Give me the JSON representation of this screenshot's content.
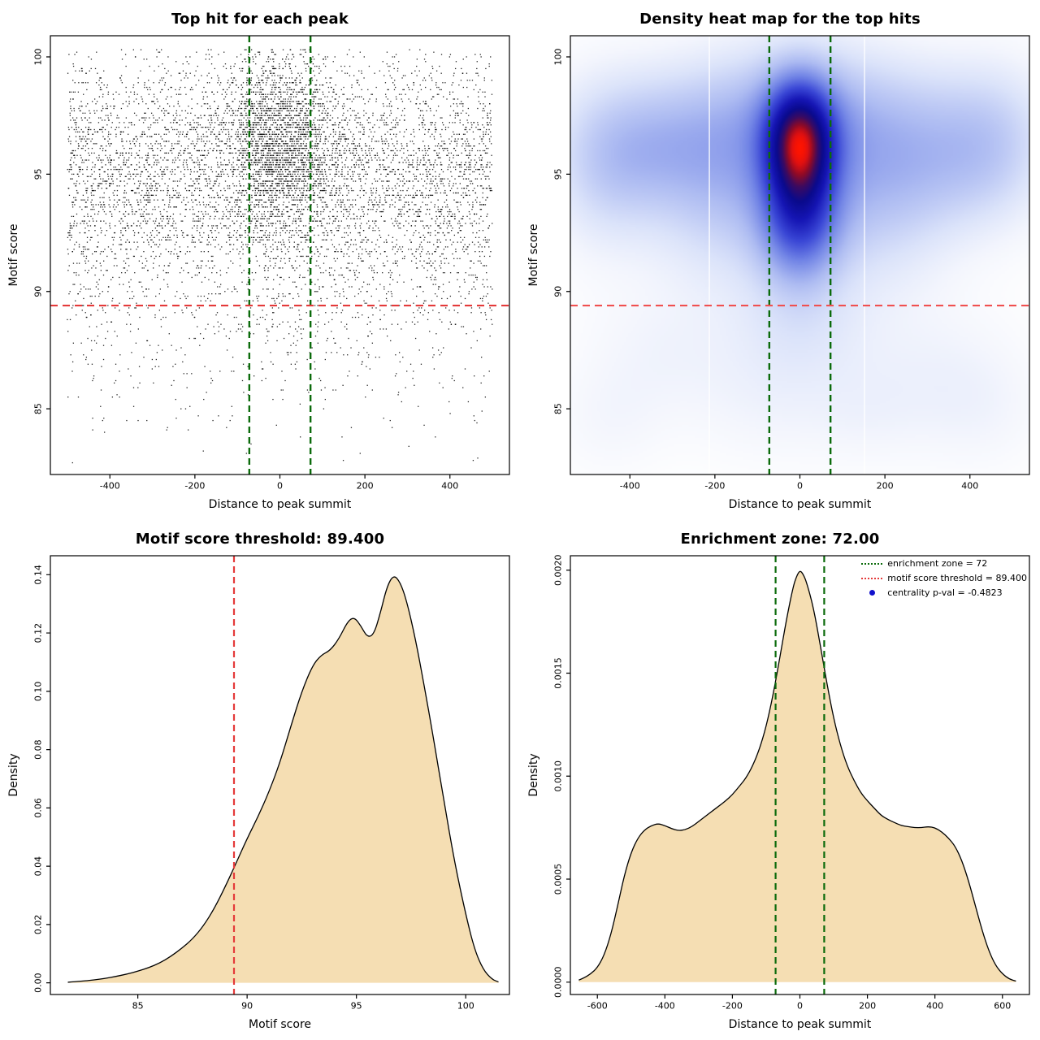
{
  "figure": {
    "background": "#ffffff",
    "accent_green": "#0b6b0b",
    "accent_red": "#e43a3a",
    "fill_wheat": "#f5deb3"
  },
  "chart_data": [
    {
      "id": "top-hit-scatter",
      "type": "scatter",
      "title": "Top hit for each peak",
      "xlabel": "Distance to peak summit",
      "ylabel": "Motif score",
      "xlim": [
        -540,
        540
      ],
      "ylim": [
        82.2,
        100.9
      ],
      "xticks": [
        -400,
        -200,
        0,
        200,
        400
      ],
      "xtick_labels": [
        "-400",
        "-200",
        "0",
        "200",
        "400"
      ],
      "yticks": [
        85,
        90,
        95,
        100
      ],
      "ytick_labels": [
        "85",
        "90",
        "95",
        "100"
      ],
      "grid": false,
      "point_color": "#000000",
      "point_size": 1.3,
      "n_points": 8200,
      "seed": 42,
      "y_quantize": 0.1,
      "mixture": [
        {
          "weight": 0.6,
          "x": {
            "type": "uniform",
            "min": -500,
            "max": 500
          },
          "y": {
            "type": "normal",
            "mean": 95.3,
            "sd": 2.6,
            "min": 83.0,
            "max": 100.35
          }
        },
        {
          "weight": 0.14,
          "x": {
            "type": "uniform",
            "min": -500,
            "max": 500
          },
          "y": {
            "type": "normal",
            "mean": 90.5,
            "sd": 3.2,
            "min": 82.6,
            "max": 100.35
          }
        },
        {
          "weight": 0.26,
          "x": {
            "type": "normal",
            "mean": 0,
            "sd": 65,
            "min": -500,
            "max": 500
          },
          "y": {
            "type": "normal",
            "mean": 96.3,
            "sd": 2.0,
            "min": 89.2,
            "max": 100.35
          }
        }
      ],
      "vlines": [
        {
          "x": -72,
          "color": "#0b6b0b",
          "dash": [
            8,
            5
          ],
          "width": 2.4
        },
        {
          "x": 72,
          "color": "#0b6b0b",
          "dash": [
            8,
            5
          ],
          "width": 2.4
        }
      ],
      "hlines": [
        {
          "y": 89.4,
          "color": "#e43a3a",
          "dash": [
            9,
            6
          ],
          "width": 2.2
        }
      ]
    },
    {
      "id": "density-heatmap",
      "type": "heatmap",
      "title": "Density heat map for the top hits",
      "xlabel": "Distance to peak summit",
      "ylabel": "Motif score",
      "xlim": [
        -540,
        540
      ],
      "ylim": [
        82.2,
        100.9
      ],
      "xticks": [
        -400,
        -200,
        0,
        200,
        400
      ],
      "xtick_labels": [
        "-400",
        "-200",
        "0",
        "200",
        "400"
      ],
      "yticks": [
        85,
        90,
        95,
        100
      ],
      "ytick_labels": [
        "85",
        "90",
        "95",
        "100"
      ],
      "grid": false,
      "colormap": [
        [
          0.0,
          "#ffffff"
        ],
        [
          0.06,
          "#f4f6fd"
        ],
        [
          0.15,
          "#dbe3fa"
        ],
        [
          0.28,
          "#aebcf2"
        ],
        [
          0.42,
          "#7285e6"
        ],
        [
          0.55,
          "#3a47d6"
        ],
        [
          0.68,
          "#1515b4"
        ],
        [
          0.78,
          "#0a0a8c"
        ],
        [
          0.86,
          "#3c0a60"
        ],
        [
          0.92,
          "#8c0a28"
        ],
        [
          0.97,
          "#e01010"
        ],
        [
          1.0,
          "#ff1400"
        ]
      ],
      "gamma": 0.82,
      "blobs": [
        {
          "cx": 0,
          "cy": 96.6,
          "sx": 55,
          "sy": 1.7,
          "a": 1.0
        },
        {
          "cx": 0,
          "cy": 94.2,
          "sx": 60,
          "sy": 2.0,
          "a": 0.55
        },
        {
          "cx": 0,
          "cy": 92.3,
          "sx": 70,
          "sy": 1.6,
          "a": 0.32
        },
        {
          "cx": 0,
          "cy": 96.3,
          "sx": 170,
          "sy": 2.6,
          "a": 0.34
        },
        {
          "cx": -330,
          "cy": 96.0,
          "sx": 130,
          "sy": 1.9,
          "a": 0.26
        },
        {
          "cx": 330,
          "cy": 95.6,
          "sx": 140,
          "sy": 2.1,
          "a": 0.24
        },
        {
          "cx": -460,
          "cy": 95.2,
          "sx": 90,
          "sy": 2.4,
          "a": 0.18
        },
        {
          "cx": 460,
          "cy": 96.4,
          "sx": 90,
          "sy": 2.2,
          "a": 0.16
        },
        {
          "cx": 0,
          "cy": 97.8,
          "sx": 300,
          "sy": 1.8,
          "a": 0.16
        },
        {
          "cx": -180,
          "cy": 93.4,
          "sx": 120,
          "sy": 2.4,
          "a": 0.18
        },
        {
          "cx": 180,
          "cy": 93.2,
          "sx": 120,
          "sy": 2.4,
          "a": 0.16
        },
        {
          "cx": 0,
          "cy": 88.6,
          "sx": 110,
          "sy": 1.8,
          "a": 0.14
        },
        {
          "cx": -320,
          "cy": 87.4,
          "sx": 130,
          "sy": 2.0,
          "a": 0.07
        },
        {
          "cx": 300,
          "cy": 86.6,
          "sx": 140,
          "sy": 2.2,
          "a": 0.07
        },
        {
          "cx": -80,
          "cy": 85.2,
          "sx": 120,
          "sy": 1.8,
          "a": 0.06
        },
        {
          "cx": 150,
          "cy": 84.8,
          "sx": 100,
          "sy": 1.5,
          "a": 0.05
        },
        {
          "cx": -450,
          "cy": 84.5,
          "sx": 90,
          "sy": 1.6,
          "a": 0.05
        },
        {
          "cx": 430,
          "cy": 85.0,
          "sx": 100,
          "sy": 1.8,
          "a": 0.05
        }
      ],
      "white_lines": [
        -213,
        152
      ],
      "vlines": [
        {
          "x": -72,
          "color": "#0b6b0b",
          "dash": [
            8,
            5
          ],
          "width": 2.4
        },
        {
          "x": 72,
          "color": "#0b6b0b",
          "dash": [
            8,
            5
          ],
          "width": 2.4
        }
      ],
      "hlines": [
        {
          "y": 89.4,
          "color": "#f05050",
          "dash": [
            9,
            6
          ],
          "width": 2.2
        }
      ]
    },
    {
      "id": "motif-score-density",
      "type": "density",
      "title": "Motif score threshold: 89.400",
      "xlabel": "Motif score",
      "ylabel": "Density",
      "xlim": [
        81.0,
        102.0
      ],
      "ylim": [
        -0.004,
        0.1465
      ],
      "xticks": [
        85,
        90,
        95,
        100
      ],
      "xtick_labels": [
        "85",
        "90",
        "95",
        "100"
      ],
      "yticks": [
        0.0,
        0.02,
        0.04,
        0.06,
        0.08,
        0.1,
        0.12,
        0.14
      ],
      "ytick_labels": [
        "0.00",
        "0.02",
        "0.04",
        "0.06",
        "0.08",
        "0.10",
        "0.12",
        "0.14"
      ],
      "grid": false,
      "fill": "#f5deb3",
      "stroke": "#000000",
      "curve": [
        [
          81.8,
          0.0002
        ],
        [
          82.5,
          0.0006
        ],
        [
          83.0,
          0.001
        ],
        [
          83.5,
          0.0015
        ],
        [
          84.0,
          0.0022
        ],
        [
          84.5,
          0.003
        ],
        [
          85.0,
          0.004
        ],
        [
          85.5,
          0.0052
        ],
        [
          86.0,
          0.0068
        ],
        [
          86.5,
          0.009
        ],
        [
          87.0,
          0.0118
        ],
        [
          87.5,
          0.015
        ],
        [
          88.0,
          0.0195
        ],
        [
          88.5,
          0.0255
        ],
        [
          89.0,
          0.033
        ],
        [
          89.4,
          0.0395
        ],
        [
          90.0,
          0.0495
        ],
        [
          90.5,
          0.057
        ],
        [
          91.0,
          0.0655
        ],
        [
          91.5,
          0.0755
        ],
        [
          92.0,
          0.088
        ],
        [
          92.5,
          0.1
        ],
        [
          93.0,
          0.109
        ],
        [
          93.4,
          0.1125
        ],
        [
          93.8,
          0.114
        ],
        [
          94.2,
          0.118
        ],
        [
          94.6,
          0.124
        ],
        [
          94.9,
          0.1255
        ],
        [
          95.2,
          0.1225
        ],
        [
          95.5,
          0.1185
        ],
        [
          95.8,
          0.1195
        ],
        [
          96.1,
          0.127
        ],
        [
          96.4,
          0.136
        ],
        [
          96.7,
          0.14
        ],
        [
          97.0,
          0.1375
        ],
        [
          97.3,
          0.131
        ],
        [
          97.7,
          0.118
        ],
        [
          98.1,
          0.102
        ],
        [
          98.5,
          0.085
        ],
        [
          99.0,
          0.0625
        ],
        [
          99.5,
          0.041
        ],
        [
          100.0,
          0.0235
        ],
        [
          100.4,
          0.0115
        ],
        [
          100.8,
          0.0045
        ],
        [
          101.2,
          0.0012
        ],
        [
          101.5,
          0.0003
        ]
      ],
      "vlines": [
        {
          "x": 89.4,
          "color": "#e43a3a",
          "dash": [
            8,
            5
          ],
          "width": 2.2
        }
      ],
      "hlines": []
    },
    {
      "id": "enrichment-zone-density",
      "type": "density",
      "title": "Enrichment zone: 72.00",
      "xlabel": "Distance to peak summit",
      "ylabel": "Density",
      "xlim": [
        -680,
        680
      ],
      "ylim": [
        -6e-05,
        0.00207
      ],
      "xticks": [
        -600,
        -400,
        -200,
        0,
        200,
        400,
        600
      ],
      "xtick_labels": [
        "-600",
        "-400",
        "-200",
        "0",
        "200",
        "400",
        "600"
      ],
      "yticks": [
        0.0,
        0.0005,
        0.001,
        0.0015,
        0.002
      ],
      "ytick_labels": [
        "0.0000",
        "0.0005",
        "0.0010",
        "0.0015",
        "0.0020"
      ],
      "grid": false,
      "fill": "#f5deb3",
      "stroke": "#000000",
      "curve": [
        [
          -655,
          1e-05
        ],
        [
          -640,
          2e-05
        ],
        [
          -620,
          4e-05
        ],
        [
          -600,
          7e-05
        ],
        [
          -580,
          0.00013
        ],
        [
          -560,
          0.00023
        ],
        [
          -540,
          0.00037
        ],
        [
          -520,
          0.00052
        ],
        [
          -500,
          0.00063
        ],
        [
          -480,
          0.0007
        ],
        [
          -460,
          0.00074
        ],
        [
          -440,
          0.00076
        ],
        [
          -420,
          0.00077
        ],
        [
          -400,
          0.00076
        ],
        [
          -380,
          0.000745
        ],
        [
          -360,
          0.000735
        ],
        [
          -340,
          0.00074
        ],
        [
          -320,
          0.000755
        ],
        [
          -300,
          0.00078
        ],
        [
          -280,
          0.000805
        ],
        [
          -260,
          0.00083
        ],
        [
          -240,
          0.000855
        ],
        [
          -220,
          0.00088
        ],
        [
          -200,
          0.00091
        ],
        [
          -180,
          0.00095
        ],
        [
          -160,
          0.00099
        ],
        [
          -140,
          0.00105
        ],
        [
          -120,
          0.00113
        ],
        [
          -100,
          0.00124
        ],
        [
          -80,
          0.00139
        ],
        [
          -60,
          0.00157
        ],
        [
          -40,
          0.00176
        ],
        [
          -20,
          0.00192
        ],
        [
          -10,
          0.00197
        ],
        [
          0,
          0.002
        ],
        [
          10,
          0.00198
        ],
        [
          20,
          0.00194
        ],
        [
          40,
          0.00182
        ],
        [
          60,
          0.00164
        ],
        [
          80,
          0.00145
        ],
        [
          100,
          0.00128
        ],
        [
          120,
          0.00115
        ],
        [
          140,
          0.00105
        ],
        [
          160,
          0.00098
        ],
        [
          180,
          0.00092
        ],
        [
          200,
          0.00088
        ],
        [
          220,
          0.000845
        ],
        [
          240,
          0.00081
        ],
        [
          260,
          0.00079
        ],
        [
          280,
          0.000775
        ],
        [
          300,
          0.00076
        ],
        [
          320,
          0.000755
        ],
        [
          340,
          0.00075
        ],
        [
          360,
          0.00075
        ],
        [
          380,
          0.000755
        ],
        [
          400,
          0.00075
        ],
        [
          420,
          0.00073
        ],
        [
          440,
          0.0007
        ],
        [
          460,
          0.00066
        ],
        [
          480,
          0.00059
        ],
        [
          500,
          0.00049
        ],
        [
          520,
          0.00037
        ],
        [
          540,
          0.00025
        ],
        [
          560,
          0.00015
        ],
        [
          580,
          8e-05
        ],
        [
          600,
          4e-05
        ],
        [
          620,
          1.5e-05
        ],
        [
          640,
          5e-06
        ]
      ],
      "vlines": [
        {
          "x": -72,
          "color": "#0b6b0b",
          "dash": [
            8,
            5
          ],
          "width": 2.2
        },
        {
          "x": 72,
          "color": "#0b6b0b",
          "dash": [
            8,
            5
          ],
          "width": 2.2
        }
      ],
      "hlines": [],
      "legend": [
        {
          "swatch": "dotted-line",
          "color": "#0b6b0b",
          "label": "enrichment zone = 72"
        },
        {
          "swatch": "dotted-line",
          "color": "#e43a3a",
          "label": "motif score threshold = 89.400"
        },
        {
          "swatch": "dot",
          "color": "#1111cc",
          "label": "centrality p-val = -0.4823"
        }
      ]
    }
  ]
}
